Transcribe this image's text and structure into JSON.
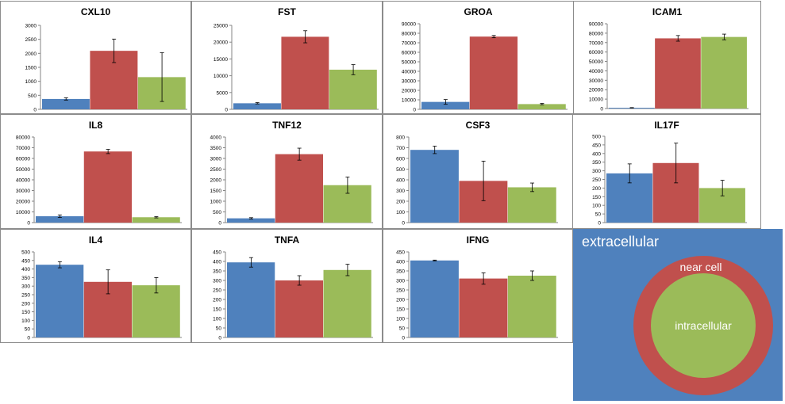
{
  "colors": {
    "extracellular": "#4f81bd",
    "near_cell": "#c0504d",
    "intracellular": "#9bbb59",
    "axis": "#868686",
    "grid_text": "#000000"
  },
  "legend": {
    "extracellular": "extracellular",
    "near_cell": "near cell",
    "intracellular": "intracellular"
  },
  "chart_data": [
    {
      "type": "bar",
      "title": "CXL10",
      "ylim": [
        0,
        3000
      ],
      "ticks": [
        "0",
        "500",
        "1000",
        "1500",
        "2000",
        "2500",
        "3000"
      ],
      "values": [
        370,
        2090,
        1150
      ],
      "errors": [
        40,
        420,
        870
      ]
    },
    {
      "type": "bar",
      "title": "FST",
      "ylim": [
        0,
        25000
      ],
      "ticks": [
        "0",
        "5000",
        "10000",
        "15000",
        "20000",
        "25000"
      ],
      "values": [
        1800,
        21600,
        11800
      ],
      "errors": [
        200,
        1800,
        1500
      ]
    },
    {
      "type": "bar",
      "title": "GROA",
      "ylim": [
        0,
        90000
      ],
      "ticks": [
        "0",
        "10000",
        "20000",
        "30000",
        "40000",
        "50000",
        "60000",
        "70000",
        "80000",
        "90000"
      ],
      "values": [
        7800,
        76500,
        5500
      ],
      "errors": [
        2500,
        1200,
        700
      ]
    },
    {
      "type": "bar",
      "title": "ICAM1",
      "ylim": [
        0,
        90000
      ],
      "ticks": [
        "0",
        "10000",
        "20000",
        "30000",
        "40000",
        "50000",
        "60000",
        "70000",
        "80000",
        "90000"
      ],
      "values": [
        800,
        74500,
        76000
      ],
      "errors": [
        200,
        3000,
        3000
      ]
    },
    {
      "type": "bar",
      "title": "IL8",
      "ylim": [
        0,
        80000
      ],
      "ticks": [
        "0",
        "10000",
        "20000",
        "30000",
        "40000",
        "50000",
        "60000",
        "70000",
        "80000"
      ],
      "values": [
        6000,
        66500,
        5000
      ],
      "errors": [
        1200,
        2000,
        600
      ]
    },
    {
      "type": "bar",
      "title": "TNF12",
      "ylim": [
        0,
        4000
      ],
      "ticks": [
        "0",
        "500",
        "1000",
        "1500",
        "2000",
        "2500",
        "3000",
        "3500",
        "4000"
      ],
      "values": [
        200,
        3200,
        1750
      ],
      "errors": [
        30,
        280,
        380
      ]
    },
    {
      "type": "bar",
      "title": "CSF3",
      "ylim": [
        0,
        800
      ],
      "ticks": [
        "0",
        "100",
        "200",
        "300",
        "400",
        "500",
        "600",
        "700",
        "800"
      ],
      "values": [
        680,
        390,
        330
      ],
      "errors": [
        35,
        185,
        40
      ]
    },
    {
      "type": "bar",
      "title": "IL17F",
      "ylim": [
        0,
        500
      ],
      "ticks": [
        "0",
        "50",
        "100",
        "150",
        "200",
        "250",
        "300",
        "350",
        "400",
        "450",
        "500"
      ],
      "values": [
        285,
        345,
        200
      ],
      "errors": [
        55,
        115,
        45
      ]
    },
    {
      "type": "bar",
      "title": "IL4",
      "ylim": [
        0,
        500
      ],
      "ticks": [
        "0",
        "50",
        "100",
        "150",
        "200",
        "250",
        "300",
        "350",
        "400",
        "450",
        "500"
      ],
      "values": [
        425,
        325,
        305
      ],
      "errors": [
        18,
        70,
        45
      ]
    },
    {
      "type": "bar",
      "title": "TNFA",
      "ylim": [
        0,
        450
      ],
      "ticks": [
        "0",
        "50",
        "100",
        "150",
        "200",
        "250",
        "300",
        "350",
        "400",
        "450"
      ],
      "values": [
        395,
        300,
        355
      ],
      "errors": [
        25,
        25,
        30
      ]
    },
    {
      "type": "bar",
      "title": "IFNG",
      "ylim": [
        0,
        450
      ],
      "ticks": [
        "0",
        "50",
        "100",
        "150",
        "200",
        "250",
        "300",
        "350",
        "400",
        "450"
      ],
      "values": [
        405,
        310,
        325
      ],
      "errors": [
        2,
        30,
        25
      ]
    }
  ]
}
